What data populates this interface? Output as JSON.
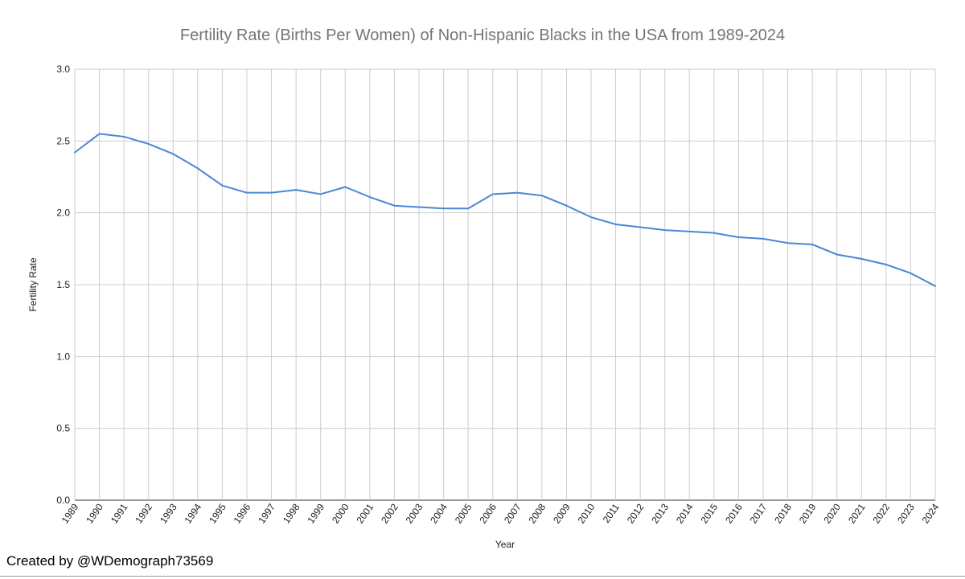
{
  "chart_data": {
    "type": "line",
    "title": "Fertility Rate (Births Per Women) of Non-Hispanic Blacks in the USA from 1989-2024",
    "xlabel": "Year",
    "ylabel": "Fertility Rate",
    "ylim": [
      0,
      3.0
    ],
    "yticks": [
      "0.0",
      "0.5",
      "1.0",
      "1.5",
      "2.0",
      "2.5",
      "3.0"
    ],
    "ytick_values": [
      0,
      0.5,
      1.0,
      1.5,
      2.0,
      2.5,
      3.0
    ],
    "grid": true,
    "legend": "none",
    "line_color": "#4a86d4",
    "categories": [
      "1989",
      "1990",
      "1991",
      "1992",
      "1993",
      "1994",
      "1995",
      "1996",
      "1997",
      "1998",
      "1999",
      "2000",
      "2001",
      "2002",
      "2003",
      "2004",
      "2005",
      "2006",
      "2007",
      "2008",
      "2009",
      "2010",
      "2011",
      "2012",
      "2013",
      "2014",
      "2015",
      "2016",
      "2017",
      "2018",
      "2019",
      "2020",
      "2021",
      "2022",
      "2023",
      "2024"
    ],
    "series": [
      {
        "name": "Fertility Rate",
        "values": [
          2.42,
          2.55,
          2.53,
          2.48,
          2.41,
          2.31,
          2.19,
          2.14,
          2.14,
          2.16,
          2.13,
          2.18,
          2.11,
          2.05,
          2.04,
          2.03,
          2.03,
          2.13,
          2.14,
          2.12,
          2.05,
          1.97,
          1.92,
          1.9,
          1.88,
          1.87,
          1.86,
          1.83,
          1.82,
          1.79,
          1.78,
          1.71,
          1.68,
          1.64,
          1.58,
          1.49
        ]
      }
    ]
  },
  "footer": {
    "credit": "Created by @WDemograph73569"
  }
}
